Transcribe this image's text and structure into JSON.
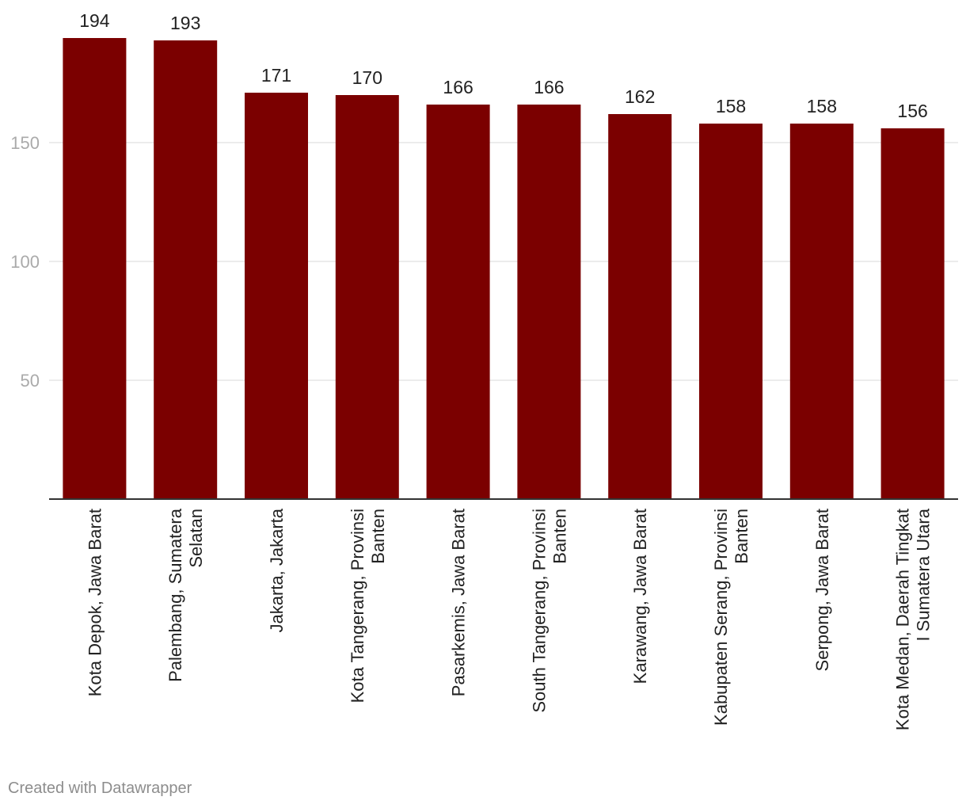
{
  "chart_data": {
    "type": "bar",
    "categories": [
      [
        "Kota Depok, Jawa Barat"
      ],
      [
        "Palembang, Sumatera",
        "Selatan"
      ],
      [
        "Jakarta, Jakarta"
      ],
      [
        "Kota Tangerang, Provinsi",
        "Banten"
      ],
      [
        "Pasarkemis, Jawa Barat"
      ],
      [
        "South Tangerang, Provinsi",
        "Banten"
      ],
      [
        "Karawang, Jawa Barat"
      ],
      [
        "Kabupaten Serang, Provinsi",
        "Banten"
      ],
      [
        "Serpong, Jawa Barat"
      ],
      [
        "Kota Medan, Daerah Tingkat",
        "I Sumatera Utara"
      ]
    ],
    "values": [
      194,
      193,
      171,
      170,
      166,
      166,
      162,
      158,
      158,
      156
    ],
    "ylim": [
      0,
      194
    ],
    "yticks": [
      50,
      100,
      150
    ],
    "grid": true,
    "bar_color": "#7b0000",
    "axis_color": "#333333",
    "grid_color": "#e5e5e5",
    "tick_label_color": "#aaaaaa",
    "value_label_color": "#222222"
  },
  "footer": {
    "credit": "Created with Datawrapper"
  }
}
